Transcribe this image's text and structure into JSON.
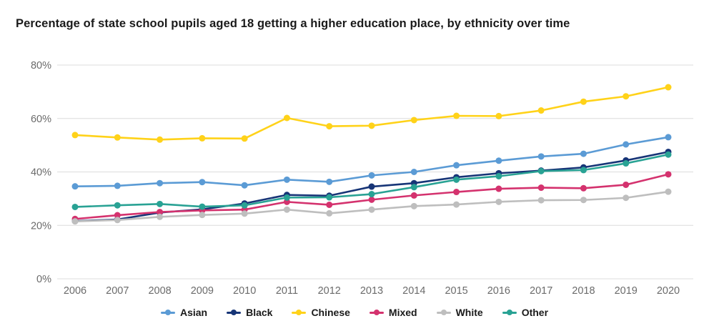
{
  "chart_data": {
    "type": "line",
    "title": "Percentage of state school pupils aged 18 getting a higher education place, by ethnicity over time",
    "x": [
      2006,
      2007,
      2008,
      2009,
      2010,
      2011,
      2012,
      2013,
      2014,
      2015,
      2016,
      2017,
      2018,
      2019,
      2020
    ],
    "series": [
      {
        "name": "Asian",
        "color": "#5B9BD5",
        "values": [
          34.6,
          34.8,
          35.8,
          36.2,
          35.0,
          37.1,
          36.3,
          38.7,
          40.0,
          42.5,
          44.2,
          45.8,
          46.8,
          50.3,
          53.0
        ]
      },
      {
        "name": "Black",
        "color": "#173577",
        "values": [
          21.6,
          22.2,
          24.8,
          26.0,
          28.2,
          31.4,
          31.1,
          34.5,
          35.8,
          38.0,
          39.5,
          40.5,
          41.7,
          44.3,
          47.5
        ]
      },
      {
        "name": "Chinese",
        "color": "#FFD219",
        "values": [
          53.8,
          52.9,
          52.1,
          52.6,
          52.5,
          60.2,
          57.1,
          57.3,
          59.4,
          61.0,
          60.9,
          63.0,
          66.3,
          68.3,
          71.7
        ]
      },
      {
        "name": "Mixed",
        "color": "#D4326E",
        "values": [
          22.4,
          23.8,
          25.0,
          25.6,
          25.9,
          28.8,
          27.7,
          29.6,
          31.2,
          32.5,
          33.7,
          34.1,
          33.9,
          35.2,
          39.1
        ]
      },
      {
        "name": "White",
        "color": "#BEBEBE",
        "values": [
          21.5,
          22.0,
          23.2,
          23.9,
          24.4,
          25.9,
          24.5,
          25.9,
          27.2,
          27.8,
          28.8,
          29.4,
          29.5,
          30.3,
          32.6
        ]
      },
      {
        "name": "Other",
        "color": "#29A294",
        "values": [
          26.9,
          27.5,
          28.0,
          27.0,
          27.5,
          30.4,
          30.5,
          31.7,
          34.3,
          37.1,
          38.4,
          40.3,
          40.7,
          43.2,
          46.5
        ]
      }
    ],
    "xlabel": "",
    "ylabel": "",
    "ylim": [
      0,
      80
    ],
    "yticks": [
      0,
      20,
      40,
      60,
      80
    ],
    "ytick_labels": [
      "0%",
      "20%",
      "40%",
      "60%",
      "80%"
    ],
    "xtick_labels": [
      "2006",
      "2007",
      "2008",
      "2009",
      "2010",
      "2011",
      "2012",
      "2013",
      "2014",
      "2015",
      "2016",
      "2017",
      "2018",
      "2019",
      "2020"
    ],
    "grid": "horizontal",
    "legend_position": "bottom",
    "legend_entries": [
      "Asian",
      "Black",
      "Chinese",
      "Mixed",
      "White",
      "Other"
    ]
  },
  "colors": {
    "background": "#FFFFFF",
    "title_text": "#1A1A1A",
    "axis_label_text": "#6B6B6B",
    "gridline": "#DCDCDC",
    "legend_text": "#1A1A1A"
  }
}
